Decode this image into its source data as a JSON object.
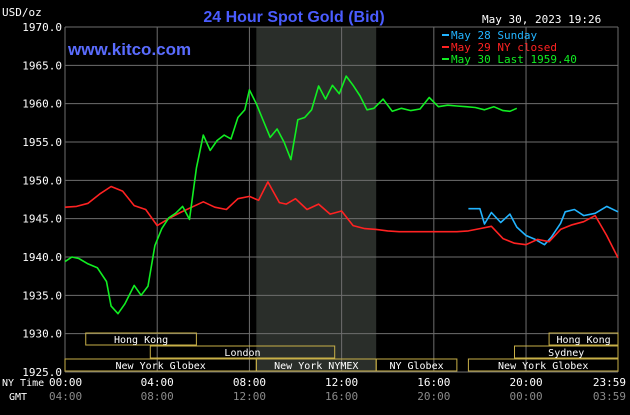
{
  "header": {
    "unit": "USD/oz",
    "title": "24 Hour Spot Gold (Bid)",
    "datetime": "May 30, 2023 19:26",
    "brand": "www.kitco.com"
  },
  "colors": {
    "background": "#000000",
    "title": "#4a5cff",
    "brand": "#5a6cff",
    "grid": "#6e6e6e",
    "shade": "#2a2e2a",
    "axis_text": "#ffffff",
    "gmt_text": "#8a8a8a",
    "session_box": "#c8b048",
    "sunday": "#22b4ff",
    "nyclosed": "#ff2222",
    "last": "#11ee22"
  },
  "legend": [
    {
      "key": "sunday",
      "text": "May 28 Sunday"
    },
    {
      "key": "nyclosed",
      "text": "May 29 NY closed"
    },
    {
      "key": "last",
      "text": "May 30 Last 1959.40"
    }
  ],
  "x_axis": {
    "nytime_label": "NY Time",
    "gmt_label": "GMT",
    "ny_ticks": [
      "00:00",
      "04:00",
      "08:00",
      "12:00",
      "16:00",
      "20:00",
      "23:59"
    ],
    "gmt_ticks": [
      "04:00",
      "08:00",
      "12:00",
      "16:00",
      "20:00",
      "00:00",
      "03:59"
    ]
  },
  "sessions": [
    {
      "label": "Hong Kong",
      "start": 0.9,
      "end": 5.7,
      "row": 0
    },
    {
      "label": "London",
      "start": 3.7,
      "end": 11.7,
      "row": 1
    },
    {
      "label": "New York Globex",
      "start": 0.0,
      "end": 8.3,
      "row": 2
    },
    {
      "label": "New York NYMEX",
      "start": 8.3,
      "end": 13.5,
      "row": 2
    },
    {
      "label": "NY Globex",
      "start": 13.5,
      "end": 17.0,
      "row": 2
    },
    {
      "label": "Hong Kong",
      "start": 21.0,
      "end": 23.99,
      "row": 0
    },
    {
      "label": "Sydney",
      "start": 19.5,
      "end": 23.99,
      "row": 1
    },
    {
      "label": "New York Globex",
      "start": 17.5,
      "end": 23.99,
      "row": 2
    }
  ],
  "chart_data": {
    "type": "line",
    "title": "24 Hour Spot Gold (Bid)",
    "ylabel": "USD/oz",
    "xlabel": "NY Time",
    "xlim": [
      0,
      23.99
    ],
    "ylim": [
      1925,
      1970
    ],
    "yticks": [
      "1925.0",
      "1930.0",
      "1935.0",
      "1940.0",
      "1945.0",
      "1950.0",
      "1955.0",
      "1960.0",
      "1965.0",
      "1970.0"
    ],
    "grid": true,
    "shaded_hours": [
      8.3,
      13.5
    ],
    "legend_position": "top-right",
    "series": [
      {
        "name": "May 28 Sunday",
        "color": "#22b4ff",
        "x": [
          17.5,
          18.0,
          18.2,
          18.5,
          18.9,
          19.3,
          19.6,
          20.0,
          20.4,
          20.8,
          21.1,
          21.5,
          21.7,
          22.1,
          22.5,
          23.0,
          23.5,
          23.99
        ],
        "y": [
          1946.3,
          1946.3,
          1944.3,
          1945.8,
          1944.5,
          1945.6,
          1943.9,
          1942.8,
          1942.3,
          1941.6,
          1942.6,
          1944.4,
          1945.9,
          1946.2,
          1945.4,
          1945.7,
          1946.6,
          1945.9
        ]
      },
      {
        "name": "May 29 NY closed",
        "color": "#ff2222",
        "x": [
          0.0,
          0.5,
          1.0,
          1.5,
          2.0,
          2.5,
          3.0,
          3.5,
          4.0,
          4.5,
          5.0,
          5.5,
          6.0,
          6.5,
          7.0,
          7.5,
          8.0,
          8.4,
          8.8,
          9.0,
          9.3,
          9.6,
          10.0,
          10.5,
          11.0,
          11.5,
          12.0,
          12.5,
          13.0,
          13.5,
          14.0,
          14.5,
          15.0,
          15.5,
          16.0,
          16.5,
          17.0,
          17.5,
          18.0,
          18.5,
          19.0,
          19.5,
          20.0,
          20.5,
          21.0,
          21.5,
          22.0,
          22.5,
          23.0,
          23.5,
          23.99
        ],
        "y": [
          1946.5,
          1946.6,
          1947.0,
          1948.2,
          1949.2,
          1948.6,
          1946.7,
          1946.2,
          1944.1,
          1945.0,
          1945.8,
          1946.5,
          1947.2,
          1946.5,
          1946.2,
          1947.6,
          1947.9,
          1947.4,
          1949.8,
          1948.7,
          1947.1,
          1946.9,
          1947.6,
          1946.2,
          1946.9,
          1945.6,
          1946.0,
          1944.1,
          1943.7,
          1943.6,
          1943.4,
          1943.3,
          1943.3,
          1943.3,
          1943.3,
          1943.3,
          1943.3,
          1943.4,
          1943.7,
          1944.0,
          1942.4,
          1941.8,
          1941.6,
          1942.3,
          1942.0,
          1943.6,
          1944.2,
          1944.6,
          1945.4,
          1942.8,
          1939.9
        ]
      },
      {
        "name": "May 30 Last 1959.40",
        "color": "#11ee22",
        "x": [
          0.0,
          0.3,
          0.6,
          1.0,
          1.4,
          1.8,
          2.0,
          2.3,
          2.6,
          3.0,
          3.3,
          3.6,
          3.9,
          4.2,
          4.5,
          4.8,
          5.1,
          5.4,
          5.7,
          6.0,
          6.3,
          6.6,
          6.9,
          7.2,
          7.5,
          7.8,
          8.0,
          8.3,
          8.6,
          8.9,
          9.2,
          9.5,
          9.8,
          10.1,
          10.4,
          10.7,
          11.0,
          11.3,
          11.6,
          11.9,
          12.2,
          12.5,
          12.8,
          13.1,
          13.4,
          13.8,
          14.2,
          14.6,
          15.0,
          15.4,
          15.8,
          16.2,
          16.6,
          17.0,
          17.4,
          17.8,
          18.2,
          18.6,
          19.0,
          19.3,
          19.6
        ],
        "y": [
          1939.4,
          1940.0,
          1939.8,
          1939.1,
          1938.6,
          1936.8,
          1933.6,
          1932.6,
          1933.9,
          1936.3,
          1935.0,
          1936.2,
          1941.5,
          1943.7,
          1945.1,
          1945.7,
          1946.6,
          1944.9,
          1951.6,
          1955.9,
          1953.9,
          1955.2,
          1955.9,
          1955.4,
          1958.2,
          1959.2,
          1961.8,
          1960.0,
          1957.8,
          1955.6,
          1956.7,
          1955.0,
          1952.7,
          1957.9,
          1958.2,
          1959.2,
          1962.3,
          1960.6,
          1962.4,
          1961.3,
          1963.6,
          1962.4,
          1961.0,
          1959.2,
          1959.4,
          1960.6,
          1959.0,
          1959.4,
          1959.1,
          1959.3,
          1960.8,
          1959.6,
          1959.8,
          1959.7,
          1959.6,
          1959.5,
          1959.2,
          1959.6,
          1959.1,
          1959.0,
          1959.4
        ]
      }
    ]
  }
}
